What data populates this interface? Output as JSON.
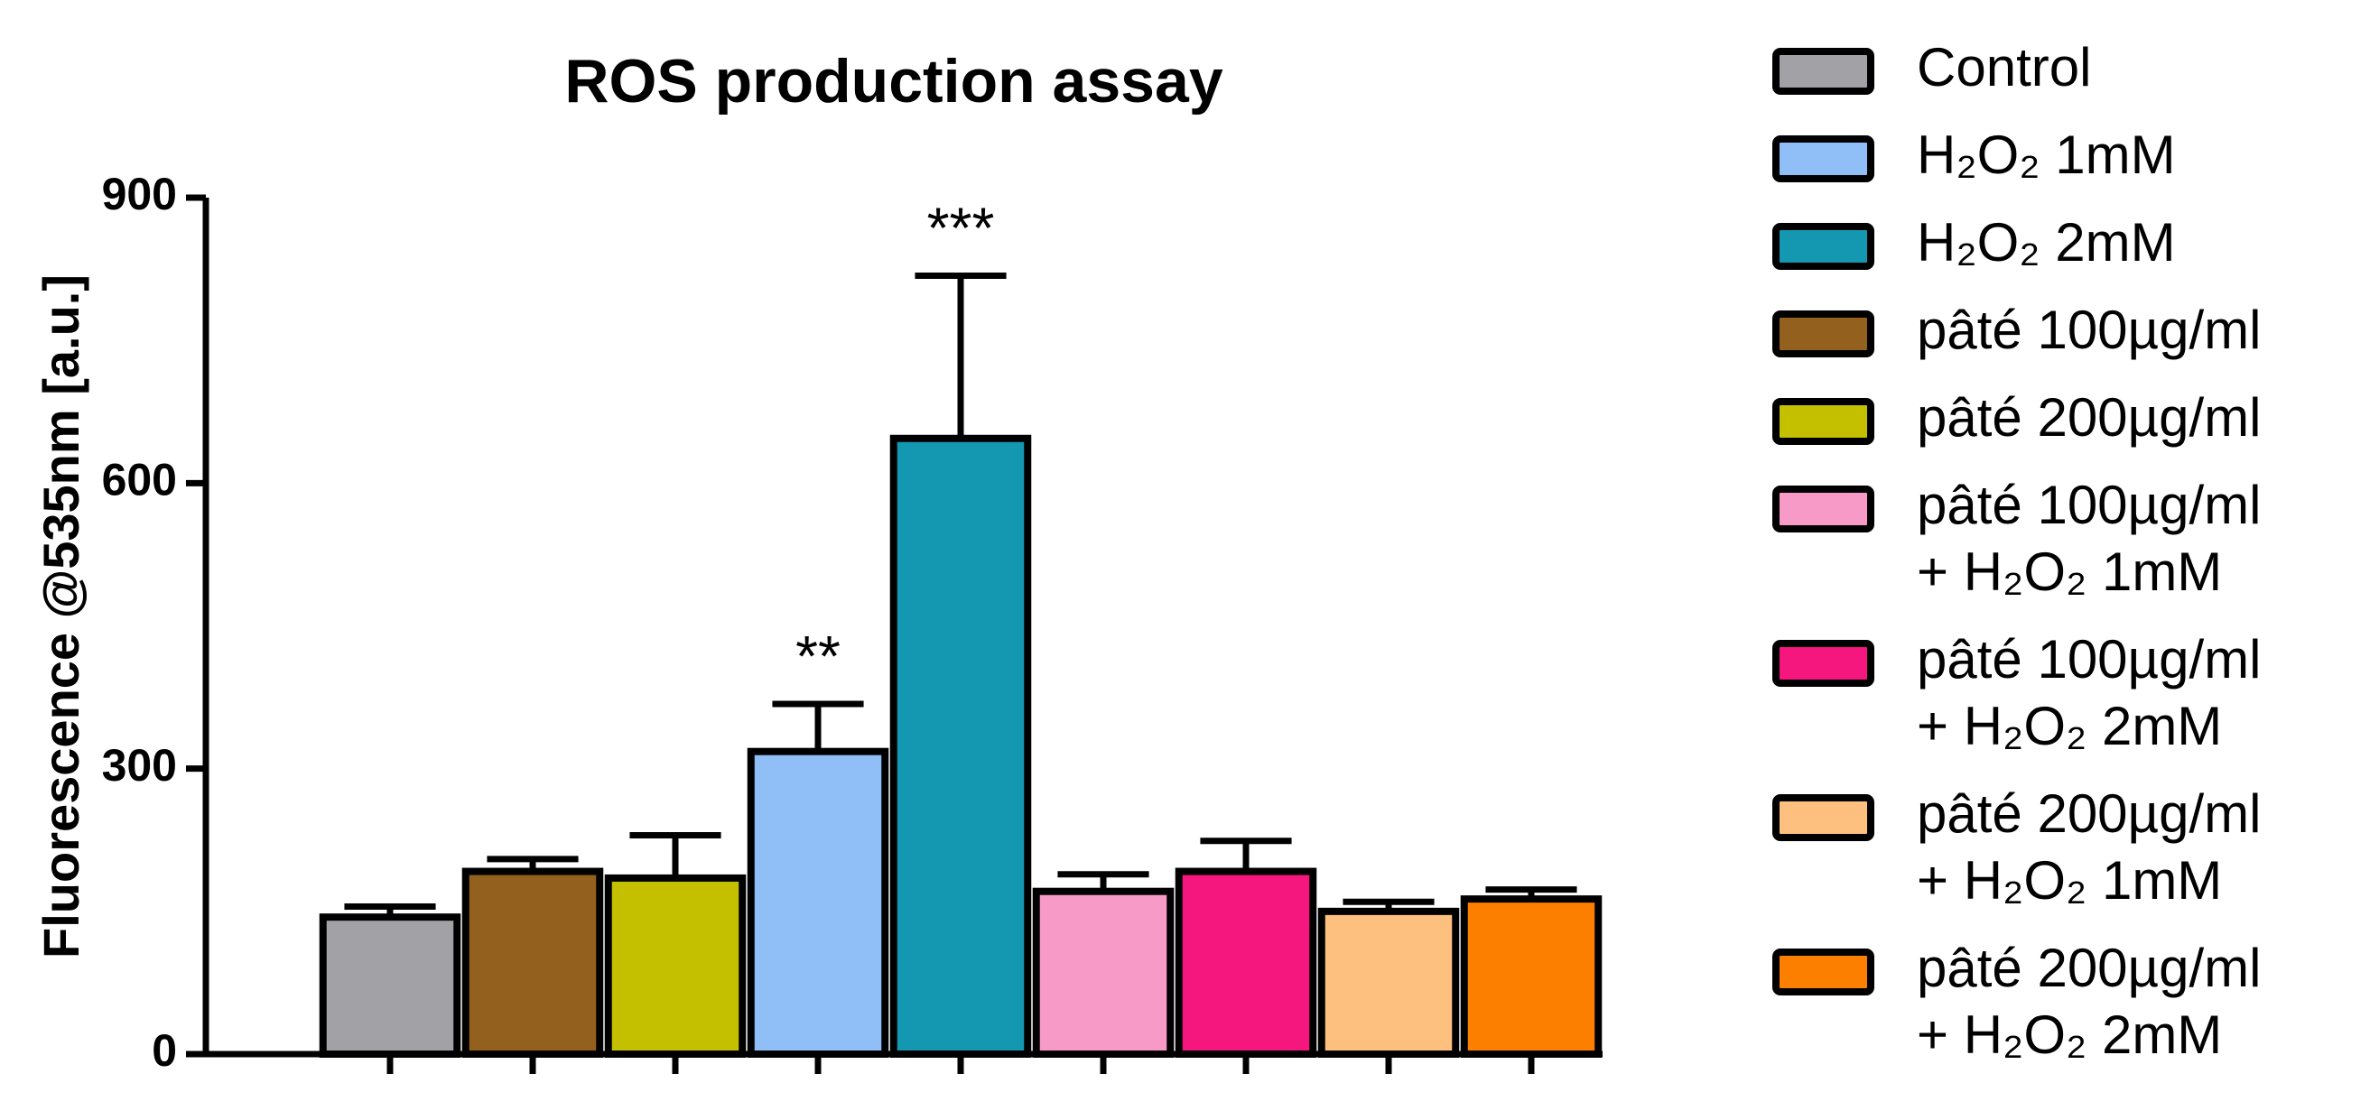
{
  "chart_data": {
    "type": "bar",
    "title": "ROS production assay",
    "y_label": "Fluorescence @535nm [a.u.]",
    "categories": [
      null,
      null,
      null,
      null,
      null,
      null,
      null,
      null,
      null
    ],
    "ylim": [
      0,
      900
    ],
    "yticks": [
      0,
      300,
      600,
      900
    ],
    "grid": false,
    "legend": "right",
    "series": [
      {
        "name": "Control",
        "color": "#a2a2a6",
        "values": [
          144,
          null,
          null,
          null,
          null,
          null,
          null,
          null,
          null
        ],
        "errors": [
          11,
          null,
          null,
          null,
          null,
          null,
          null,
          null,
          null
        ]
      },
      {
        "name": "H₂O₂ 1mM",
        "color": "#90bff8",
        "values": [
          null,
          null,
          null,
          318,
          null,
          null,
          null,
          null,
          null
        ],
        "errors": [
          null,
          null,
          null,
          50,
          null,
          null,
          null,
          null,
          null
        ]
      },
      {
        "name": "H₂O₂ 2mM",
        "color": "#1497b0",
        "values": [
          null,
          null,
          null,
          null,
          647,
          null,
          null,
          null,
          null
        ],
        "errors": [
          null,
          null,
          null,
          null,
          171,
          null,
          null,
          null,
          null
        ]
      },
      {
        "name": "pâté 100µg/ml",
        "color": "#94601e",
        "values": [
          null,
          192,
          null,
          null,
          null,
          null,
          null,
          null,
          null
        ],
        "errors": [
          null,
          13,
          null,
          null,
          null,
          null,
          null,
          null,
          null
        ]
      },
      {
        "name": "pâté 200µg/ml",
        "color": "#c4c000",
        "values": [
          null,
          null,
          185,
          null,
          null,
          null,
          null,
          null,
          null
        ],
        "errors": [
          null,
          null,
          45,
          null,
          null,
          null,
          null,
          null,
          null
        ]
      },
      {
        "name": "pâté 100µg/ml\n+ H₂O₂ 1mM",
        "color": "#f79ac8",
        "values": [
          null,
          null,
          null,
          null,
          null,
          171,
          null,
          null,
          null
        ],
        "errors": [
          null,
          null,
          null,
          null,
          null,
          18,
          null,
          null,
          null
        ]
      },
      {
        "name": "pâté 100µg/ml\n+ H₂O₂ 2mM",
        "color": "#f5167e",
        "values": [
          null,
          null,
          null,
          null,
          null,
          null,
          192,
          null,
          null
        ],
        "errors": [
          null,
          null,
          null,
          null,
          null,
          null,
          32,
          null,
          null
        ]
      },
      {
        "name": "pâté 200µg/ml\n+ H₂O₂ 1mM",
        "color": "#fdc07e",
        "values": [
          null,
          null,
          null,
          null,
          null,
          null,
          null,
          150,
          null
        ],
        "errors": [
          null,
          null,
          null,
          null,
          null,
          null,
          null,
          10,
          null
        ]
      },
      {
        "name": "pâté 200µg/ml\n+ H₂O₂ 2mM",
        "color": "#fd7f00",
        "values": [
          null,
          null,
          null,
          null,
          null,
          null,
          null,
          null,
          163
        ],
        "errors": [
          null,
          null,
          null,
          null,
          null,
          null,
          null,
          null,
          10
        ]
      }
    ],
    "annotations": [
      null,
      null,
      null,
      "**",
      "***",
      null,
      null,
      null,
      null
    ]
  }
}
